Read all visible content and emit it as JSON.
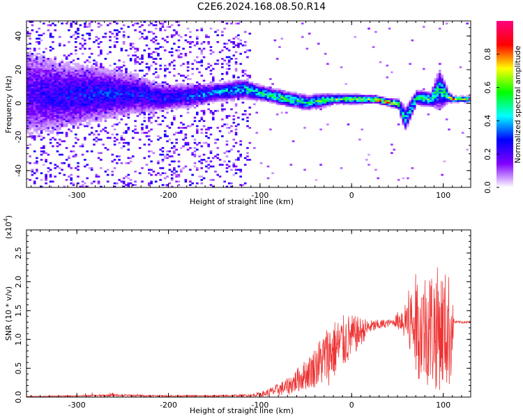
{
  "title": "C2E6.2024.168.08.50.R14",
  "chart_data": [
    {
      "type": "heatmap",
      "xlabel": "Height of straight line (km)",
      "ylabel": "Frequency (Hz)",
      "xlim": [
        -355,
        130
      ],
      "ylim": [
        -50,
        49
      ],
      "xticks": [
        -300,
        -200,
        -100,
        0,
        100
      ],
      "yticks": [
        -40,
        -20,
        0,
        20,
        40
      ],
      "ridge": [
        {
          "x": -355,
          "freq": 5,
          "spread": 20,
          "amp": 0.22
        },
        {
          "x": -320,
          "freq": 4,
          "spread": 15,
          "amp": 0.28
        },
        {
          "x": -280,
          "freq": 5,
          "spread": 12,
          "amp": 0.32
        },
        {
          "x": -240,
          "freq": 5,
          "spread": 9,
          "amp": 0.3
        },
        {
          "x": -210,
          "freq": 3,
          "spread": 6,
          "amp": 0.3
        },
        {
          "x": -180,
          "freq": 4,
          "spread": 5,
          "amp": 0.35
        },
        {
          "x": -150,
          "freq": 6,
          "spread": 4,
          "amp": 0.4
        },
        {
          "x": -120,
          "freq": 8,
          "spread": 4,
          "amp": 0.48
        },
        {
          "x": -95,
          "freq": 5,
          "spread": 3,
          "amp": 0.55
        },
        {
          "x": -70,
          "freq": 2,
          "spread": 3,
          "amp": 0.6
        },
        {
          "x": -50,
          "freq": 0,
          "spread": 3,
          "amp": 0.55
        },
        {
          "x": -35,
          "freq": 1,
          "spread": 3,
          "amp": 0.58
        },
        {
          "x": -20,
          "freq": 2,
          "spread": 2,
          "amp": 0.62
        },
        {
          "x": 0,
          "freq": 2,
          "spread": 2,
          "amp": 0.68
        },
        {
          "x": 25,
          "freq": 2,
          "spread": 1.5,
          "amp": 0.82
        },
        {
          "x": 40,
          "freq": 0,
          "spread": 1.5,
          "amp": 0.9
        },
        {
          "x": 50,
          "freq": -1,
          "spread": 2,
          "amp": 0.7
        },
        {
          "x": 57,
          "freq": -10,
          "spread": 5,
          "amp": 0.45
        },
        {
          "x": 70,
          "freq": 3,
          "spread": 3,
          "amp": 0.55
        },
        {
          "x": 85,
          "freq": 2,
          "spread": 3,
          "amp": 0.6
        },
        {
          "x": 95,
          "freq": 8,
          "spread": 8,
          "amp": 0.5
        },
        {
          "x": 105,
          "freq": 3,
          "spread": 2,
          "amp": 0.65
        },
        {
          "x": 110,
          "freq": 2,
          "spread": 1.2,
          "amp": 0.9
        },
        {
          "x": 130,
          "freq": 2,
          "spread": 1.2,
          "amp": 0.9
        }
      ],
      "colorbar": {
        "label": "Normalized spectral amplitude",
        "ticks": [
          0.0,
          0.2,
          0.4,
          0.6,
          0.8
        ],
        "range": [
          0,
          1
        ],
        "colors": [
          "#ffffff",
          "#8000ff",
          "#0000ff",
          "#00ffff",
          "#00ff00",
          "#ffff00",
          "#ff0000",
          "#ff0080"
        ]
      }
    },
    {
      "type": "line",
      "xlabel": "Height of straight line (km)",
      "ylabel": "SNR (10 * v/v)",
      "y_scale_label": "(x10",
      "y_scale_exp": "4",
      "y_scale_close": ")",
      "xlim": [
        -355,
        130
      ],
      "ylim": [
        0,
        2.9
      ],
      "xticks": [
        -300,
        -200,
        -100,
        0,
        100
      ],
      "yticks": [
        0.0,
        0.5,
        1.0,
        1.5,
        2.0,
        2.5
      ],
      "color": "#ee3333",
      "envelope": [
        {
          "x": -355,
          "base": 0.01,
          "amp": 0.005
        },
        {
          "x": -300,
          "base": 0.02,
          "amp": 0.01
        },
        {
          "x": -260,
          "base": 0.03,
          "amp": 0.02
        },
        {
          "x": -200,
          "base": 0.02,
          "amp": 0.015
        },
        {
          "x": -150,
          "base": 0.02,
          "amp": 0.015
        },
        {
          "x": -110,
          "base": 0.03,
          "amp": 0.02
        },
        {
          "x": -95,
          "base": 0.06,
          "amp": 0.05
        },
        {
          "x": -70,
          "base": 0.18,
          "amp": 0.15
        },
        {
          "x": -45,
          "base": 0.45,
          "amp": 0.3
        },
        {
          "x": -25,
          "base": 0.75,
          "amp": 0.55
        },
        {
          "x": -5,
          "base": 1.0,
          "amp": 0.45
        },
        {
          "x": 20,
          "base": 1.22,
          "amp": 0.12
        },
        {
          "x": 45,
          "base": 1.3,
          "amp": 0.05
        },
        {
          "x": 55,
          "base": 1.35,
          "amp": 0.25
        },
        {
          "x": 70,
          "base": 1.25,
          "amp": 0.9
        },
        {
          "x": 90,
          "base": 1.2,
          "amp": 1.1
        },
        {
          "x": 108,
          "base": 1.15,
          "amp": 1.0
        },
        {
          "x": 112,
          "base": 1.3,
          "amp": 0.02
        },
        {
          "x": 130,
          "base": 1.3,
          "amp": 0.02
        }
      ]
    }
  ]
}
